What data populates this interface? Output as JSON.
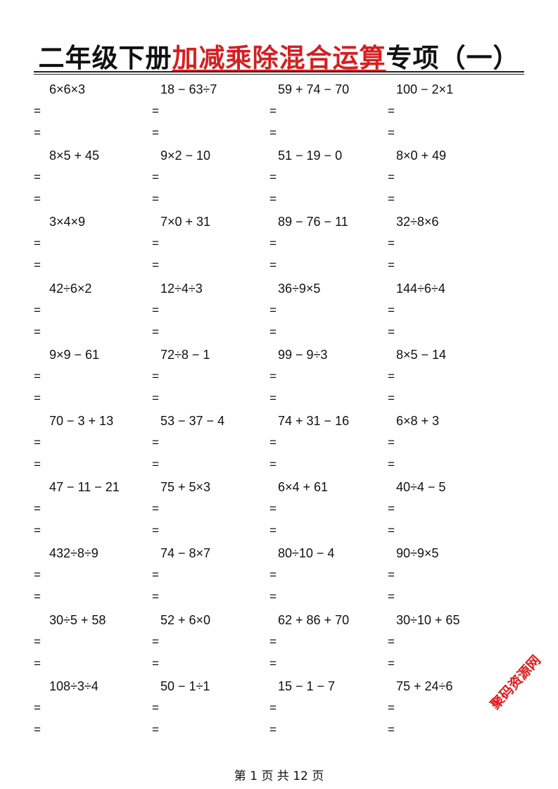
{
  "title": {
    "part1": "二年级下册",
    "part2": "加减乘除混合运算",
    "part3": "专项（一）"
  },
  "equals_sign": "=",
  "rows": [
    [
      "6×6×3",
      "18 − 63÷7",
      "59 + 74 − 70",
      "100 − 2×1"
    ],
    [
      "8×5 + 45",
      "9×2 − 10",
      "51 − 19 − 0",
      "8×0 + 49"
    ],
    [
      "3×4×9",
      "7×0 + 31",
      "89 − 76 − 11",
      "32÷8×6"
    ],
    [
      "42÷6×2",
      "12÷4÷3",
      "36÷9×5",
      "144÷6÷4"
    ],
    [
      "9×9 − 61",
      "72÷8 − 1",
      "99 − 9÷3",
      "8×5 − 14"
    ],
    [
      "70 − 3 + 13",
      "53 − 37 − 4",
      "74 + 31 − 16",
      "6×8 + 3"
    ],
    [
      "47 − 11 − 21",
      "75 + 5×3",
      "6×4 + 61",
      "40÷4 − 5"
    ],
    [
      "432÷8÷9",
      "74 − 8×7",
      "80÷10 − 4",
      "90÷9×5"
    ],
    [
      "30÷5 + 58",
      "52 + 6×0",
      "62 + 86 + 70",
      "30÷10 + 65"
    ],
    [
      "108÷3÷4",
      "50 − 1÷1",
      "15 − 1 − 7",
      "75 + 24÷6"
    ]
  ],
  "footer": "第 1 页 共 12 页",
  "watermark": "聚码资源网",
  "colors": {
    "accent": "#d42020"
  }
}
